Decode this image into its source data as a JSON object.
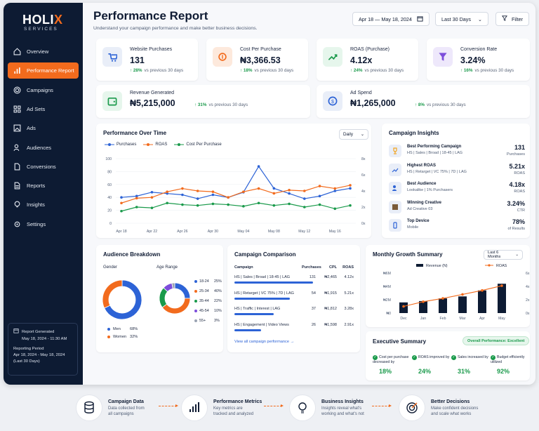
{
  "brand": {
    "name_a": "HOLI",
    "name_b": "X",
    "sub": "SERVICES"
  },
  "nav": [
    {
      "label": "Overview",
      "icon": "home-icon"
    },
    {
      "label": "Performance Report",
      "icon": "bar-chart-icon"
    },
    {
      "label": "Campaigns",
      "icon": "target-icon"
    },
    {
      "label": "Ad Sets",
      "icon": "grid-icon"
    },
    {
      "label": "Ads",
      "icon": "image-icon"
    },
    {
      "label": "Audiences",
      "icon": "users-icon"
    },
    {
      "label": "Conversions",
      "icon": "document-icon"
    },
    {
      "label": "Reports",
      "icon": "file-icon"
    },
    {
      "label": "Insights",
      "icon": "bulb-icon"
    },
    {
      "label": "Settings",
      "icon": "gear-icon"
    }
  ],
  "report": {
    "title": "Report Generated",
    "generated": "May 18, 2024 - 11:30 AM",
    "period_label": "Reporting Period",
    "period": "Apr 18, 2024 - May 18, 2024",
    "period_days": "(Last 30 Days)"
  },
  "header": {
    "title": "Performance Report",
    "subtitle": "Understand your campaign performance and make better business decisions.",
    "date_range": "Apr 18 — May 18, 2024",
    "preset": "Last 30 Days",
    "filter": "Filter"
  },
  "kpis": [
    {
      "label": "Website Purchases",
      "value": "131",
      "change": "28%",
      "note": "vs previous 30 days"
    },
    {
      "label": "Cost Per Purchase",
      "value": "₦3,366.53",
      "change": "18%",
      "note": "vs previous 30 days"
    },
    {
      "label": "ROAS (Purchase)",
      "value": "4.12x",
      "change": "24%",
      "note": "vs previous 30 days"
    },
    {
      "label": "Conversion Rate",
      "value": "3.24%",
      "change": "16%",
      "note": "vs previous 30 days"
    },
    {
      "label": "Revenue Generated",
      "value": "₦5,215,000",
      "change": "31%",
      "note": "vs previous 30 days"
    },
    {
      "label": "Ad Spend",
      "value": "₦1,265,000",
      "change": "8%",
      "note": "vs previous 30 days"
    }
  ],
  "colors": {
    "accent": "#f26b1d",
    "navy": "#0d1b33",
    "blue": "#2d63d6",
    "green": "#1a9a4b"
  },
  "perf": {
    "title": "Performance Over Time",
    "dropdown": "Daily"
  },
  "insights": {
    "title": "Campaign Insights",
    "items": [
      {
        "name": "Best Performing Campaign",
        "desc": "HS | Sales | Broad | 18-45 | LAG",
        "value": "131",
        "unit": "Purchases"
      },
      {
        "name": "Highest ROAS",
        "desc": "HS | Retarget | VC 75% | 7D | LAG",
        "value": "5.21x",
        "unit": "ROAS"
      },
      {
        "name": "Best Audience",
        "desc": "Lookalike | 1% Purchasers",
        "value": "4.18x",
        "unit": "ROAS"
      },
      {
        "name": "Winning Creative",
        "desc": "Ad Creative 03",
        "value": "3.24%",
        "unit": "CTR"
      },
      {
        "name": "Top Device",
        "desc": "Mobile",
        "value": "78%",
        "unit": "of Results"
      }
    ]
  },
  "audience": {
    "title": "Audience Breakdown",
    "gender_label": "Gender",
    "age_label": "Age Range",
    "gender": [
      {
        "label": "Men",
        "value": "68%"
      },
      {
        "label": "Women",
        "value": "32%"
      }
    ],
    "ages": [
      {
        "label": "18-24",
        "value": "25%"
      },
      {
        "label": "25-34",
        "value": "40%"
      },
      {
        "label": "35-44",
        "value": "22%"
      },
      {
        "label": "45-54",
        "value": "10%"
      },
      {
        "label": "55+",
        "value": "3%"
      }
    ]
  },
  "comparison": {
    "title": "Campaign Comparison",
    "headers": [
      "Campaign",
      "Purchases",
      "CPL",
      "ROAS"
    ],
    "rows": [
      {
        "name": "HS | Sales | Broad | 18-45 | LAG",
        "purchases": "131",
        "cpl": "₦2,465",
        "roas": "4.12x"
      },
      {
        "name": "HS | Retarget | VC 75% | 7D | LAG",
        "purchases": "54",
        "cpl": "₦1,915",
        "roas": "5.21x"
      },
      {
        "name": "HS | Traffic | Interest | LAG",
        "purchases": "37",
        "cpl": "₦1,812",
        "roas": "3.28x"
      },
      {
        "name": "HS | Engagement | Video Views",
        "purchases": "26",
        "cpl": "₦1,598",
        "roas": "2.91x"
      }
    ],
    "link": "View all campaign performance"
  },
  "growth": {
    "title": "Monthly Growth Summary",
    "dropdown": "Last 6 Months",
    "legend": [
      "Revenue (N)",
      "ROAS"
    ]
  },
  "executive": {
    "title": "Executive Summary",
    "badge": "Overall Performance: Excellent",
    "items": [
      {
        "label": "Cost per purchase decreased by",
        "value": "18%"
      },
      {
        "label": "ROAS improved by",
        "value": "24%"
      },
      {
        "label": "Sales increased by",
        "value": "31%"
      },
      {
        "label": "Budget efficiently utilized",
        "value": "92%"
      }
    ]
  },
  "flow": [
    {
      "title": "Campaign Data",
      "text1": "Data collected from",
      "text2": "all campaigns"
    },
    {
      "title": "Performance Metrics",
      "text1": "Key metrics are",
      "text2": "tracked and analyzed"
    },
    {
      "title": "Business Insights",
      "text1": "Insights reveal what's",
      "text2": "working and what's not"
    },
    {
      "title": "Better Decisions",
      "text1": "Make confident decisions",
      "text2": "and scale what works"
    }
  ],
  "chart_data": [
    {
      "type": "line",
      "categories": [
        "Apr 18",
        "Apr 22",
        "Apr 26",
        "Apr 30",
        "May 04",
        "May 08",
        "May 12",
        "May 16"
      ],
      "x": [
        "Apr 18",
        "Apr 20",
        "Apr 22",
        "Apr 24",
        "Apr 26",
        "Apr 28",
        "Apr 30",
        "May 02",
        "May 04",
        "May 06",
        "May 08",
        "May 10",
        "May 12",
        "May 14",
        "May 16",
        "May 18"
      ],
      "series": [
        {
          "name": "Purchases",
          "axis": "left",
          "values": [
            40,
            42,
            48,
            46,
            44,
            38,
            44,
            40,
            48,
            88,
            54,
            46,
            38,
            42,
            50,
            54
          ]
        },
        {
          "name": "ROAS",
          "axis": "right",
          "values": [
            2.5,
            3.1,
            3.2,
            3.9,
            4.3,
            4.0,
            3.9,
            3.2,
            3.9,
            4.3,
            3.7,
            4.1,
            4.0,
            4.6,
            4.3,
            4.7
          ]
        },
        {
          "name": "Cost Per Purchase",
          "axis": "right",
          "values": [
            1.5,
            2.0,
            1.9,
            2.5,
            2.3,
            2.2,
            2.4,
            2.3,
            2.1,
            2.5,
            2.2,
            2.4,
            2.0,
            2.3,
            1.8,
            2.2
          ]
        }
      ],
      "y_left": {
        "ticks": [
          "0",
          "20",
          "40",
          "60",
          "80",
          "100"
        ],
        "ylim": [
          0,
          100
        ]
      },
      "y_right": {
        "ticks": [
          "0x",
          "2x",
          "4x",
          "6x",
          "8x"
        ],
        "ylim": [
          0,
          8
        ]
      }
    },
    {
      "type": "pie",
      "title": "Gender",
      "slices": [
        {
          "label": "Men",
          "value": 68
        },
        {
          "label": "Women",
          "value": 32
        }
      ]
    },
    {
      "type": "pie",
      "title": "Age Range",
      "slices": [
        {
          "label": "18-24",
          "value": 25
        },
        {
          "label": "25-34",
          "value": 40
        },
        {
          "label": "35-44",
          "value": 22
        },
        {
          "label": "45-54",
          "value": 10
        },
        {
          "label": "55+",
          "value": 3
        }
      ]
    },
    {
      "type": "bar",
      "categories": [
        "Dec",
        "Jan",
        "Feb",
        "Mar",
        "Apr",
        "May"
      ],
      "series": [
        {
          "name": "Revenue (N)",
          "axis": "left",
          "values": [
            1.6,
            1.8,
            2.2,
            2.5,
            3.4,
            4.4
          ]
        },
        {
          "name": "ROAS",
          "axis": "right",
          "type": "line",
          "values": [
            1.0,
            1.7,
            2.2,
            2.8,
            3.4,
            4.1
          ]
        }
      ],
      "y_left": {
        "ticks": [
          "₦0",
          "₦2M",
          "₦4M",
          "₦6M"
        ],
        "ylim": [
          0,
          6
        ]
      },
      "y_right": {
        "ticks": [
          "0x",
          "2x",
          "4x",
          "6x"
        ],
        "ylim": [
          0,
          6
        ]
      }
    }
  ]
}
